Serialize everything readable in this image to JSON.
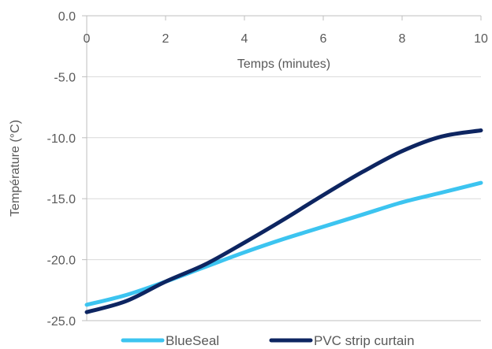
{
  "chart_data": {
    "type": "line",
    "title": "",
    "xlabel": "Temps (minutes)",
    "ylabel": "Température (°C)",
    "xlim": [
      0,
      10
    ],
    "ylim": [
      -25,
      0
    ],
    "x_ticks": [
      "0",
      "2",
      "4",
      "6",
      "8",
      "10"
    ],
    "y_ticks": [
      "0.0",
      "-5.0",
      "-10.0",
      "-15.0",
      "-20.0",
      "-25.0"
    ],
    "grid": "horizontal",
    "legend_position": "bottom",
    "x_axis_position": "top",
    "series": [
      {
        "name": "BlueSeal",
        "color": "#3cc4f0",
        "x": [
          0,
          1,
          2,
          3,
          4,
          5,
          6,
          7,
          8,
          9,
          10
        ],
        "y": [
          -23.7,
          -22.9,
          -21.8,
          -20.6,
          -19.4,
          -18.3,
          -17.3,
          -16.3,
          -15.3,
          -14.5,
          -13.7
        ]
      },
      {
        "name": "PVC strip curtain",
        "color": "#0d2561",
        "x": [
          0,
          1,
          2,
          3,
          4,
          5,
          6,
          7,
          8,
          9,
          10
        ],
        "y": [
          -24.3,
          -23.4,
          -21.8,
          -20.4,
          -18.6,
          -16.7,
          -14.7,
          -12.8,
          -11.1,
          -9.9,
          -9.4
        ]
      }
    ]
  }
}
